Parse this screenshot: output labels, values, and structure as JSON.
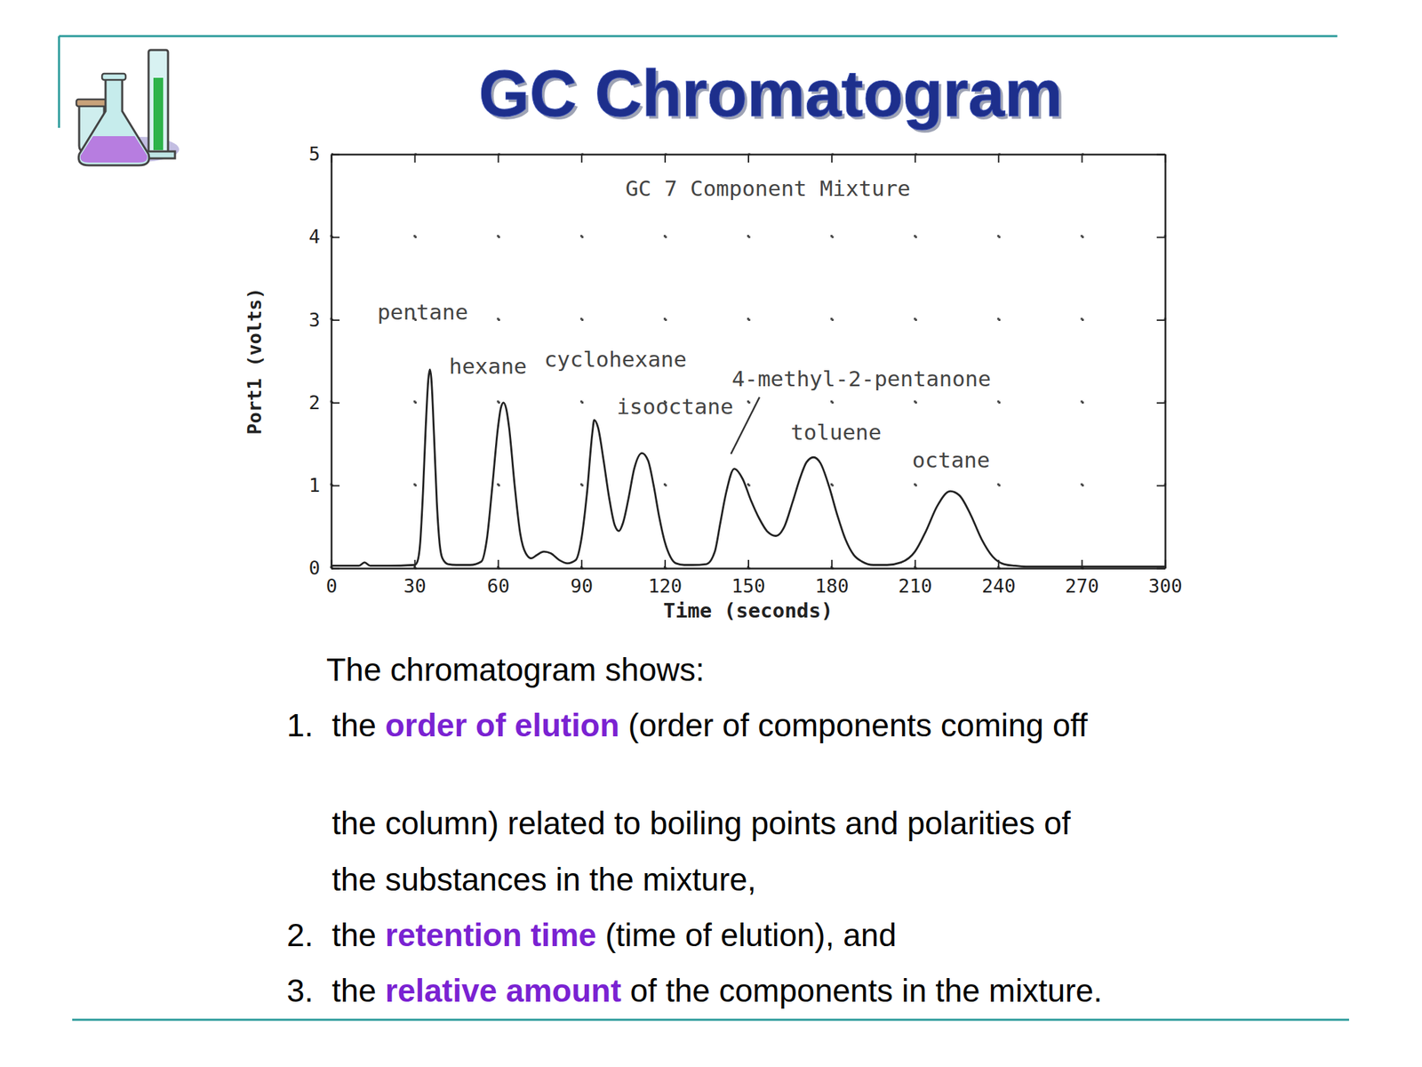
{
  "slide": {
    "title": "GC Chromatogram",
    "text": {
      "intro": "The chromatogram shows:",
      "items": [
        {
          "number": "1.",
          "lines": [
            [
              {
                "text": "the "
              },
              {
                "text": "order of elution",
                "highlight": true
              },
              {
                "text": " (order of components coming off"
              }
            ],
            [
              {
                "text": "the column) related to boiling points and polarities of"
              }
            ],
            [
              {
                "text": "the substances in the mixture,"
              }
            ]
          ]
        },
        {
          "number": "2.",
          "lines": [
            [
              {
                "text": "the "
              },
              {
                "text": "retention time",
                "highlight": true
              },
              {
                "text": " (time of elution), and"
              }
            ]
          ]
        },
        {
          "number": "3.",
          "lines": [
            [
              {
                "text": "the "
              },
              {
                "text": "relative amount",
                "highlight": true
              },
              {
                "text": " of the components in the mixture."
              }
            ]
          ]
        }
      ]
    }
  },
  "chart_data": {
    "type": "line",
    "title": "GC 7 Component Mixture",
    "x_label": "Time (seconds)",
    "y_label": "Port1 (volts)",
    "x": [
      0,
      10,
      12,
      14,
      20,
      30,
      31,
      32,
      33,
      34,
      35,
      35.5,
      36,
      37,
      38,
      39,
      40,
      42,
      45,
      50,
      54,
      56,
      58,
      60,
      61,
      62,
      63,
      64,
      66,
      68,
      70,
      72,
      74,
      76.5,
      79,
      82,
      85,
      88,
      90,
      92,
      94,
      94.6,
      96,
      98,
      100,
      102,
      103.5,
      105,
      107,
      109,
      111.8,
      114,
      116,
      118,
      120,
      122,
      124,
      127,
      130,
      135,
      138,
      140,
      142,
      145,
      148,
      151,
      154,
      157,
      160,
      163,
      166,
      169,
      171,
      173.5,
      176,
      179,
      182,
      185,
      188,
      191,
      195,
      200,
      205,
      210,
      214,
      218,
      222.7,
      226,
      230,
      234,
      238,
      242,
      246,
      250,
      260,
      280,
      300
    ],
    "values": [
      0.03,
      0.03,
      0.07,
      0.03,
      0.03,
      0.04,
      0.08,
      0.3,
      0.9,
      1.7,
      2.3,
      2.4,
      2.3,
      1.6,
      0.8,
      0.3,
      0.12,
      0.05,
      0.04,
      0.04,
      0.08,
      0.35,
      1.0,
      1.7,
      1.93,
      2.0,
      1.92,
      1.7,
      1.0,
      0.42,
      0.18,
      0.12,
      0.16,
      0.2,
      0.18,
      0.1,
      0.06,
      0.1,
      0.35,
      0.9,
      1.65,
      1.79,
      1.7,
      1.3,
      0.85,
      0.52,
      0.45,
      0.55,
      0.85,
      1.2,
      1.39,
      1.3,
      1.0,
      0.62,
      0.32,
      0.14,
      0.06,
      0.04,
      0.04,
      0.05,
      0.2,
      0.55,
      0.9,
      1.2,
      1.08,
      0.82,
      0.6,
      0.44,
      0.39,
      0.5,
      0.8,
      1.12,
      1.28,
      1.34,
      1.27,
      1.0,
      0.65,
      0.35,
      0.16,
      0.08,
      0.04,
      0.04,
      0.07,
      0.2,
      0.45,
      0.75,
      0.93,
      0.88,
      0.65,
      0.35,
      0.14,
      0.05,
      0.03,
      0.02,
      0.02,
      0.02,
      0.02
    ],
    "color": "#222222",
    "xlim": [
      0,
      300
    ],
    "ylim": [
      0,
      5
    ],
    "xticks": [
      0,
      30,
      60,
      90,
      120,
      150,
      180,
      210,
      240,
      270,
      300
    ],
    "yticks": [
      0,
      1,
      2,
      3,
      4,
      5
    ],
    "grid": true,
    "annotations": [
      {
        "text": "pentane",
        "x": 16.6,
        "y": 3.0
      },
      {
        "text": "hexane",
        "x": 42.4,
        "y": 2.35
      },
      {
        "text": "cyclohexane",
        "x": 76.6,
        "y": 2.43
      },
      {
        "text": "isooctane",
        "x": 102.7,
        "y": 1.86
      },
      {
        "text": "4-methyl-2-pentanone",
        "x": 144.1,
        "y": 2.2,
        "arrow": {
          "x": 143.8,
          "y": 1.38
        }
      },
      {
        "text": "toluene",
        "x": 165.3,
        "y": 1.55
      },
      {
        "text": "octane",
        "x": 209,
        "y": 1.22
      }
    ]
  }
}
